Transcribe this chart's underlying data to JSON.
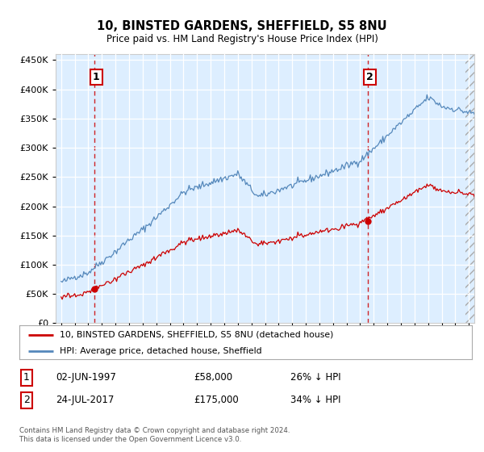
{
  "title": "10, BINSTED GARDENS, SHEFFIELD, S5 8NU",
  "subtitle": "Price paid vs. HM Land Registry's House Price Index (HPI)",
  "legend_line1": "10, BINSTED GARDENS, SHEFFIELD, S5 8NU (detached house)",
  "legend_line2": "HPI: Average price, detached house, Sheffield",
  "annotation1_label": "1",
  "annotation1_date": "02-JUN-1997",
  "annotation1_price": "£58,000",
  "annotation1_hpi": "26% ↓ HPI",
  "annotation1_year": 1997.42,
  "annotation1_value": 58000,
  "annotation2_label": "2",
  "annotation2_date": "24-JUL-2017",
  "annotation2_price": "£175,000",
  "annotation2_hpi": "34% ↓ HPI",
  "annotation2_year": 2017.56,
  "annotation2_value": 175000,
  "sold_color": "#cc0000",
  "hpi_color": "#5588bb",
  "background_color": "#ddeeff",
  "footer_text": "Contains HM Land Registry data © Crown copyright and database right 2024.\nThis data is licensed under the Open Government Licence v3.0.",
  "ylim": [
    0,
    460000
  ],
  "xlim_start": 1994.6,
  "xlim_end": 2025.4,
  "hatch_start": 2024.75
}
